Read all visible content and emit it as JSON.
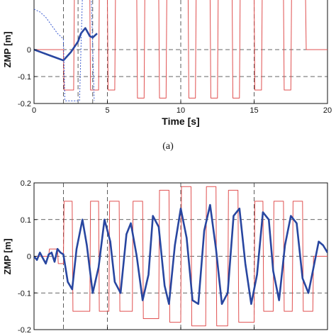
{
  "chart_data": [
    {
      "type": "line",
      "ylabel": "ZMP [m]",
      "xlabel": "Time [s]",
      "xlim": [
        0,
        20
      ],
      "ylim": [
        -0.2,
        0.2
      ],
      "x_ticks": [
        "0",
        "5",
        "10",
        "15",
        "20"
      ],
      "y_ticks": [
        "-0.2",
        "-0.1",
        "0"
      ],
      "grid": "dashed lines at x = 2, 3, 4, 5, 10, 15 and y = 0, -0.1",
      "caption": "(a)",
      "colors": {
        "reference": "#e05050",
        "measured": "#2846a0",
        "dotted": "#3a5ad0"
      },
      "series": [
        {
          "style": "thin red reference",
          "x": [
            0,
            2.0,
            2.05,
            2.7,
            2.75,
            3.8,
            3.85,
            4.4,
            4.45,
            5.0,
            5.05,
            5.5,
            5.55,
            7.0,
            7.05,
            7.5,
            7.55,
            8.5,
            8.55,
            9.0,
            9.05,
            10.5,
            10.55,
            11.0,
            11.05,
            12.0,
            12.05,
            12.5,
            12.55,
            13.5,
            13.55,
            14.0,
            14.05,
            15.0,
            15.05,
            15.5,
            15.55,
            17.0,
            17.05,
            17.5,
            17.55,
            18.5,
            18.55,
            19.0,
            19.05,
            20.0
          ],
          "y": [
            0,
            0,
            -0.15,
            -0.15,
            0.2,
            0.2,
            -0.15,
            -0.15,
            0.2,
            0.2,
            -0.15,
            -0.15,
            0.2,
            0.2,
            -0.18,
            -0.18,
            0.2,
            0.2,
            -0.18,
            -0.18,
            0.2,
            0.2,
            -0.18,
            -0.18,
            0.2,
            0.2,
            -0.18,
            -0.18,
            0.2,
            0.2,
            -0.18,
            -0.18,
            0.2,
            0.2,
            -0.15,
            -0.15,
            0.2,
            0.2,
            -0.15,
            -0.15,
            0.2,
            0.2,
            0,
            0,
            0,
            0
          ]
        },
        {
          "style": "thick blue measured",
          "x": [
            0,
            0.5,
            1.0,
            1.5,
            2.0,
            2.5,
            3.0,
            3.2,
            3.5,
            3.8,
            4.0,
            4.3
          ],
          "y": [
            0,
            -0.01,
            -0.02,
            -0.03,
            -0.04,
            -0.01,
            0.03,
            0.06,
            0.08,
            0.05,
            0.045,
            0.06
          ]
        },
        {
          "style": "thin blue dotted",
          "x": [
            0,
            0.4,
            0.8,
            1.2,
            1.6,
            2.0,
            2.1,
            2.3,
            2.5,
            2.7,
            2.9,
            3.1,
            3.3,
            3.5,
            3.7,
            3.9,
            4.1
          ],
          "y": [
            0.15,
            0.14,
            0.12,
            0.09,
            0.06,
            0.04,
            -0.19,
            -0.19,
            -0.19,
            -0.19,
            -0.19,
            -0.19,
            0.2,
            0.2,
            0.2,
            0.2,
            -0.19
          ]
        }
      ]
    },
    {
      "type": "line",
      "ylabel": "ZMP [m]",
      "xlim": [
        0,
        20
      ],
      "ylim": [
        -0.2,
        0.2
      ],
      "y_ticks": [
        "0.2",
        "0.1",
        "0",
        "-0.1",
        "-0.2"
      ],
      "grid": "dashed lines at x = 2, 5, 10, 15 and y = 0.1, 0, -0.1",
      "colors": {
        "reference": "#e05050",
        "measured": "#2846a0",
        "dotted": "#3a5ad0"
      },
      "series": [
        {
          "style": "thin red reference",
          "x": [
            0,
            1.0,
            1.05,
            1.6,
            1.65,
            2.0,
            2.05,
            2.6,
            2.65,
            3.8,
            3.85,
            4.4,
            4.45,
            5.1,
            5.15,
            5.8,
            5.85,
            6.7,
            6.75,
            7.4,
            7.45,
            8.5,
            8.55,
            9.2,
            9.25,
            10.0,
            10.05,
            10.7,
            10.75,
            11.7,
            11.75,
            12.4,
            12.45,
            13.2,
            13.25,
            13.9,
            13.95,
            15.0,
            15.05,
            15.6,
            15.65,
            16.3,
            16.35,
            17.0,
            17.05,
            17.6,
            17.65,
            18.3,
            18.35,
            19.0,
            19.05,
            20.0
          ],
          "y": [
            0,
            0,
            0.02,
            0.02,
            -0.02,
            -0.02,
            0.15,
            0.15,
            -0.15,
            -0.15,
            0.15,
            0.15,
            -0.15,
            -0.15,
            0.15,
            0.15,
            -0.15,
            -0.15,
            0.15,
            0.15,
            -0.17,
            -0.17,
            0.18,
            0.18,
            -0.18,
            -0.18,
            0.19,
            0.19,
            -0.19,
            -0.19,
            0.19,
            0.19,
            -0.19,
            -0.19,
            0.18,
            0.18,
            -0.18,
            -0.18,
            0.15,
            0.15,
            -0.15,
            -0.15,
            0.15,
            0.15,
            -0.15,
            -0.15,
            0.15,
            0.15,
            -0.15,
            -0.15,
            0,
            0
          ]
        },
        {
          "style": "thick blue measured",
          "x": [
            0,
            0.2,
            0.4,
            0.6,
            0.8,
            1.0,
            1.2,
            1.4,
            1.6,
            1.8,
            2.0,
            2.3,
            2.6,
            2.9,
            3.3,
            3.6,
            4.0,
            4.4,
            4.8,
            5.2,
            5.5,
            5.9,
            6.3,
            6.6,
            7.0,
            7.4,
            7.8,
            8.1,
            8.5,
            8.9,
            9.2,
            9.6,
            10.0,
            10.4,
            10.8,
            11.2,
            11.6,
            12.0,
            12.4,
            12.8,
            13.2,
            13.6,
            14.0,
            14.4,
            14.8,
            15.2,
            15.6,
            16.0,
            16.3,
            16.7,
            17.1,
            17.5,
            17.9,
            18.3,
            18.7,
            19.1,
            19.4,
            19.7,
            20.0
          ],
          "y": [
            0,
            -0.01,
            0.01,
            -0.005,
            -0.02,
            0.005,
            0.01,
            -0.015,
            0.02,
            0.01,
            0.005,
            -0.07,
            -0.09,
            0.02,
            0.1,
            0.03,
            -0.1,
            -0.03,
            0.1,
            0.04,
            -0.07,
            -0.1,
            0.06,
            0.09,
            0.0,
            -0.12,
            -0.05,
            0.11,
            0.08,
            -0.08,
            -0.13,
            0.03,
            0.13,
            0.05,
            -0.12,
            -0.13,
            0.07,
            0.14,
            0.02,
            -0.13,
            -0.1,
            0.11,
            0.13,
            -0.02,
            -0.13,
            -0.05,
            0.12,
            0.1,
            -0.04,
            -0.12,
            0.03,
            0.11,
            0.09,
            -0.06,
            -0.1,
            -0.02,
            0.04,
            0.03,
            0.01
          ]
        }
      ]
    }
  ]
}
